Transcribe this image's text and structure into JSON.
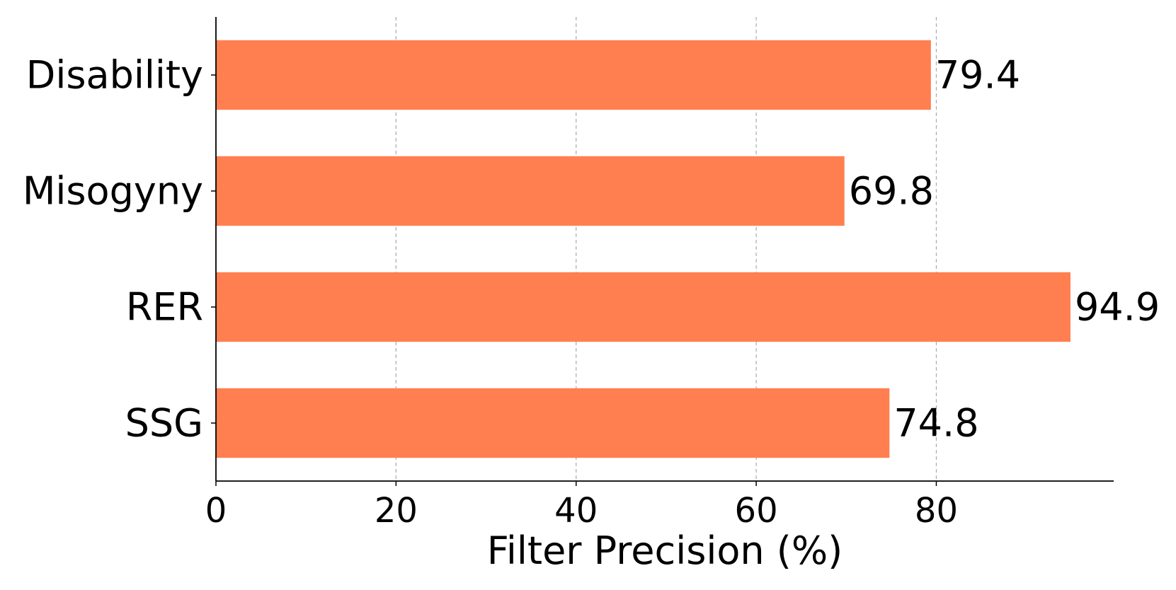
{
  "chart_data": {
    "type": "bar",
    "orientation": "horizontal",
    "categories": [
      "Disability",
      "Misogyny",
      "RER",
      "SSG"
    ],
    "values": [
      79.4,
      69.8,
      94.9,
      74.8
    ],
    "value_labels": [
      "79.4",
      "69.8",
      "94.9",
      "74.8"
    ],
    "xlabel": "Filter Precision (%)",
    "ylabel": "",
    "title": "",
    "xlim": [
      0,
      99.7
    ],
    "xticks": [
      0,
      20,
      40,
      60,
      80
    ],
    "xtick_labels": [
      "0",
      "20",
      "40",
      "60",
      "80"
    ],
    "grid": "vertical dashed",
    "bar_color": "#FF7F50",
    "legend": "none"
  }
}
